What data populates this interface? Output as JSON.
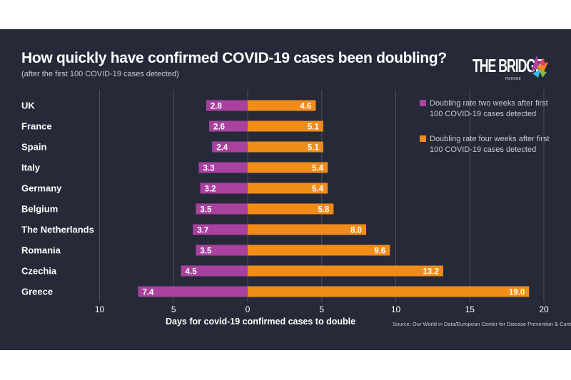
{
  "header": {
    "title": "How quickly have confirmed COVID-19 cases been doubling?",
    "subtitle": "(after the first 100 COVID-19 cases detected)"
  },
  "logo": {
    "text": "THE BRIDGE",
    "sub": "TAVERNE"
  },
  "source": "Source: Our World in Data/European Center for Disease Prevention & Control",
  "colors": {
    "background": "#262a38",
    "two_weeks": "#a9419f",
    "four_weeks": "#f28c18",
    "grid": "#4a4e5e",
    "text": "#ffffff"
  },
  "chart_data": {
    "type": "bar",
    "orientation": "horizontal",
    "layout": "diverging",
    "categories": [
      "UK",
      "France",
      "Spain",
      "Italy",
      "Germany",
      "Belgium",
      "The Netherlands",
      "Romania",
      "Czechia",
      "Greece"
    ],
    "series": [
      {
        "name": "Doubling rate two weeks after first\n100 COVID-19 cases detected",
        "direction": "left",
        "values": [
          2.8,
          2.6,
          2.4,
          3.3,
          3.2,
          3.5,
          3.7,
          3.5,
          4.5,
          7.4
        ],
        "labels": [
          "2.8",
          "2.6",
          "2.4",
          "3.3",
          "3.2",
          "3.5",
          "3.7",
          "3.5",
          "4.5",
          "7.4"
        ]
      },
      {
        "name": "Doubling rate four weeks after first\n100 COVID-19 cases detected",
        "direction": "right",
        "values": [
          4.6,
          5.1,
          5.1,
          5.4,
          5.4,
          5.8,
          8.0,
          9.6,
          13.2,
          19.0
        ],
        "labels": [
          "4.6",
          "5.1",
          "5.1",
          "5.4",
          "5.4",
          "5.8",
          "8.0",
          "9.6",
          "13.2",
          "19.0"
        ]
      }
    ],
    "xlim": [
      -10,
      20
    ],
    "x_ticks": [
      -10,
      -5,
      0,
      5,
      10,
      15,
      20
    ],
    "x_tick_labels": [
      "10",
      "5",
      "0",
      "5",
      "10",
      "15",
      "20"
    ],
    "xlabel": "Days for covid-19 confirmed cases to double",
    "grid": true,
    "legend_position": "right"
  }
}
